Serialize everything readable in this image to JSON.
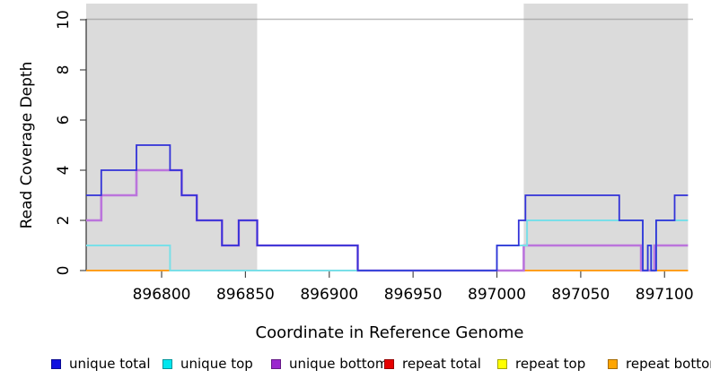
{
  "figure": {
    "background": "#ffffff",
    "plot_background": "#ffffff"
  },
  "chart_data": {
    "type": "line",
    "subtype": "step-after read coverage plot",
    "title": "",
    "xlabel": "Coordinate in Reference Genome",
    "ylabel": "Read Coverage Depth",
    "xlim": [
      896755,
      897117
    ],
    "ylim": [
      0,
      10
    ],
    "grid": "off",
    "legend_position": "bottom",
    "x_ticks": [
      "896800",
      "896850",
      "896900",
      "896950",
      "897000",
      "897050",
      "897100"
    ],
    "y_ticks": [
      "0",
      "2",
      "4",
      "6",
      "8",
      "10"
    ],
    "shaded_regions": {
      "color": "#DBDBDB",
      "meaning": "repeat-region highlight",
      "ranges": [
        [
          896755,
          896857
        ],
        [
          897016,
          897114
        ]
      ]
    },
    "legend": [
      {
        "label": "unique total",
        "color": "#1010E0"
      },
      {
        "label": "unique top",
        "color": "#00E6EE"
      },
      {
        "label": "unique bottom",
        "color": "#9B27CE"
      },
      {
        "label": "repeat total",
        "color": "#E60000"
      },
      {
        "label": "repeat top",
        "color": "#FFFF00"
      },
      {
        "label": "repeat bottom",
        "color": "#FFA500"
      }
    ],
    "series": [
      {
        "name": "repeat total",
        "line_color": "#D2427A",
        "line_width": 1.6,
        "steps": [
          [
            896755,
            0
          ],
          [
            897114,
            0
          ]
        ]
      },
      {
        "name": "repeat top",
        "line_color": "#EDED6A",
        "line_width": 1.6,
        "steps": [
          [
            896755,
            0
          ],
          [
            897114,
            0
          ]
        ]
      },
      {
        "name": "repeat bottom",
        "line_color": "#FF9D1A",
        "line_width": 1.8,
        "steps": [
          [
            896755,
            0
          ],
          [
            897114,
            0
          ]
        ]
      },
      {
        "name": "unique bottom",
        "line_color": "#BB74DC",
        "line_width": 2.6,
        "steps": [
          [
            896755,
            2
          ],
          [
            896764,
            3
          ],
          [
            896785,
            4
          ],
          [
            896805,
            4
          ],
          [
            896812,
            3
          ],
          [
            896821,
            2
          ],
          [
            896836,
            1
          ],
          [
            896846,
            2
          ],
          [
            896857,
            1
          ],
          [
            896917,
            0
          ],
          [
            897016,
            1
          ],
          [
            897086,
            0
          ],
          [
            897094,
            1
          ],
          [
            897114,
            1
          ]
        ]
      },
      {
        "name": "unique top",
        "line_color": "#79DFE8",
        "line_width": 2.0,
        "steps": [
          [
            896755,
            1
          ],
          [
            896805,
            0
          ],
          [
            897000,
            1
          ],
          [
            897018,
            2
          ],
          [
            897087,
            0
          ],
          [
            897090,
            1
          ],
          [
            897092,
            0
          ],
          [
            897095,
            2
          ],
          [
            897114,
            2
          ]
        ]
      },
      {
        "name": "unique total",
        "line_color": "#3232D8",
        "line_width": 1.8,
        "steps": [
          [
            896755,
            3
          ],
          [
            896764,
            4
          ],
          [
            896785,
            5
          ],
          [
            896805,
            4
          ],
          [
            896812,
            3
          ],
          [
            896821,
            2
          ],
          [
            896836,
            1
          ],
          [
            896846,
            2
          ],
          [
            896857,
            1
          ],
          [
            896917,
            0
          ],
          [
            897000,
            1
          ],
          [
            897013,
            2
          ],
          [
            897017,
            3
          ],
          [
            897073,
            2
          ],
          [
            897087,
            0
          ],
          [
            897090,
            1
          ],
          [
            897092,
            0
          ],
          [
            897095,
            2
          ],
          [
            897106,
            3
          ],
          [
            897114,
            3
          ]
        ]
      }
    ],
    "zero_line_visible_segments": [
      {
        "from": 896755,
        "to": 896805,
        "color": "#FF9D1A",
        "source": "repeat bottom"
      },
      {
        "from": 896805,
        "to": 897000,
        "color": "#95DE95",
        "source": "unique top over repeat top overlap"
      },
      {
        "from": 897000,
        "to": 897016,
        "color": "#D2427A",
        "source": "repeat total / unique bottom overlap"
      },
      {
        "from": 897016,
        "to": 897087,
        "color": "#FF9D1A",
        "source": "repeat bottom"
      },
      {
        "from": 897087,
        "to": 897094,
        "color": "#95DE95",
        "source": "unique top over repeat top overlap"
      },
      {
        "from": 897094,
        "to": 897114,
        "color": "#FF9D1A",
        "source": "repeat bottom"
      }
    ],
    "axis_style": {
      "left_spine_color": "#2F2F2F",
      "top_spine_color": "#8F8F8F",
      "tick_color": "#4A4A4A",
      "tick_label_color": "#000000"
    }
  }
}
